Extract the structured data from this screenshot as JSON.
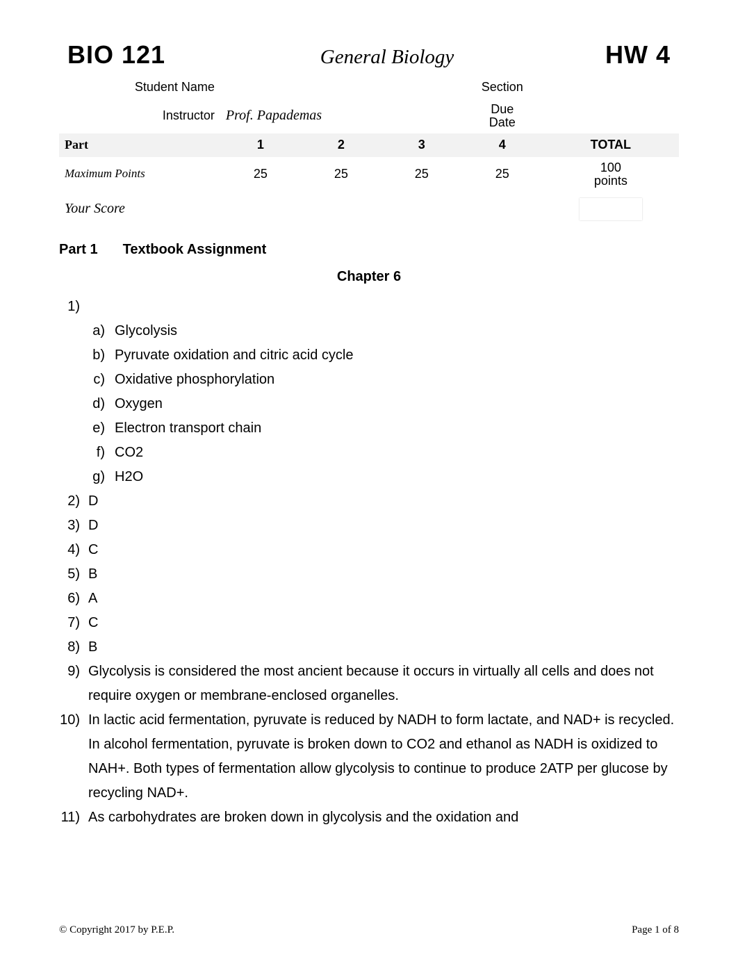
{
  "header": {
    "course_code": "BIO 121",
    "course_title": "General Biology",
    "hw_code": "HW 4",
    "student_name_label": "Student Name",
    "student_name": "",
    "section_label": "Section",
    "section": "",
    "instructor_label": "Instructor",
    "instructor": "Prof. Papademas",
    "due_label_1": "Due",
    "due_label_2": "Date",
    "due_date": "",
    "part_label": "Part",
    "parts": [
      "1",
      "2",
      "3",
      "4"
    ],
    "total_label": "TOTAL",
    "max_label": "Maximum Points",
    "max_points": [
      "25",
      "25",
      "25",
      "25"
    ],
    "total_points_1": "100",
    "total_points_2": "points",
    "score_label": "Your Score"
  },
  "section": {
    "num": "Part 1",
    "title": "Textbook Assignment",
    "chapter": "Chapter 6"
  },
  "q1": {
    "num": "1)",
    "a_lbl": "a)",
    "a": "Glycolysis",
    "b_lbl": "b)",
    "b": "Pyruvate oxidation and citric acid cycle",
    "c_lbl": "c)",
    "c": "Oxidative phosphorylation",
    "d_lbl": "d)",
    "d": "Oxygen",
    "e_lbl": "e)",
    "e": "Electron transport chain",
    "f_lbl": "f)",
    "f": "CO2",
    "g_lbl": "g)",
    "g": "H2O"
  },
  "q2": {
    "num": "2)",
    "ans": "D"
  },
  "q3": {
    "num": "3)",
    "ans": "D"
  },
  "q4": {
    "num": "4)",
    "ans": "C"
  },
  "q5": {
    "num": "5)",
    "ans": "B"
  },
  "q6": {
    "num": "6)",
    "ans": "A"
  },
  "q7": {
    "num": "7)",
    "ans": "C"
  },
  "q8": {
    "num": "8)",
    "ans": "B"
  },
  "q9": {
    "num": "9)",
    "ans": "Glycolysis is considered the most ancient because it occurs in virtually all cells and does not require oxygen or membrane-enclosed organelles."
  },
  "q10": {
    "num": "10)",
    "ans": "In lactic acid fermentation, pyruvate is reduced by NADH to form lactate, and NAD+ is recycled. In alcohol fermentation, pyruvate is broken down to CO2 and ethanol as NADH is oxidized to NAH+. Both types of fermentation allow glycolysis to continue to produce 2ATP per glucose by recycling NAD+."
  },
  "q11": {
    "num": "11)",
    "ans": "As carbohydrates are broken down in glycolysis and the oxidation and"
  },
  "footer": {
    "copyright": "© Copyright 2017 by P.E.P.",
    "page": "Page 1 of 8"
  },
  "style": {
    "bg": "#ffffff",
    "text_color": "#000000",
    "accent_bg": "#f2f2f2",
    "body_font_size": 20,
    "header_code_size": 36,
    "title_size": 29,
    "footer_size": 15
  }
}
